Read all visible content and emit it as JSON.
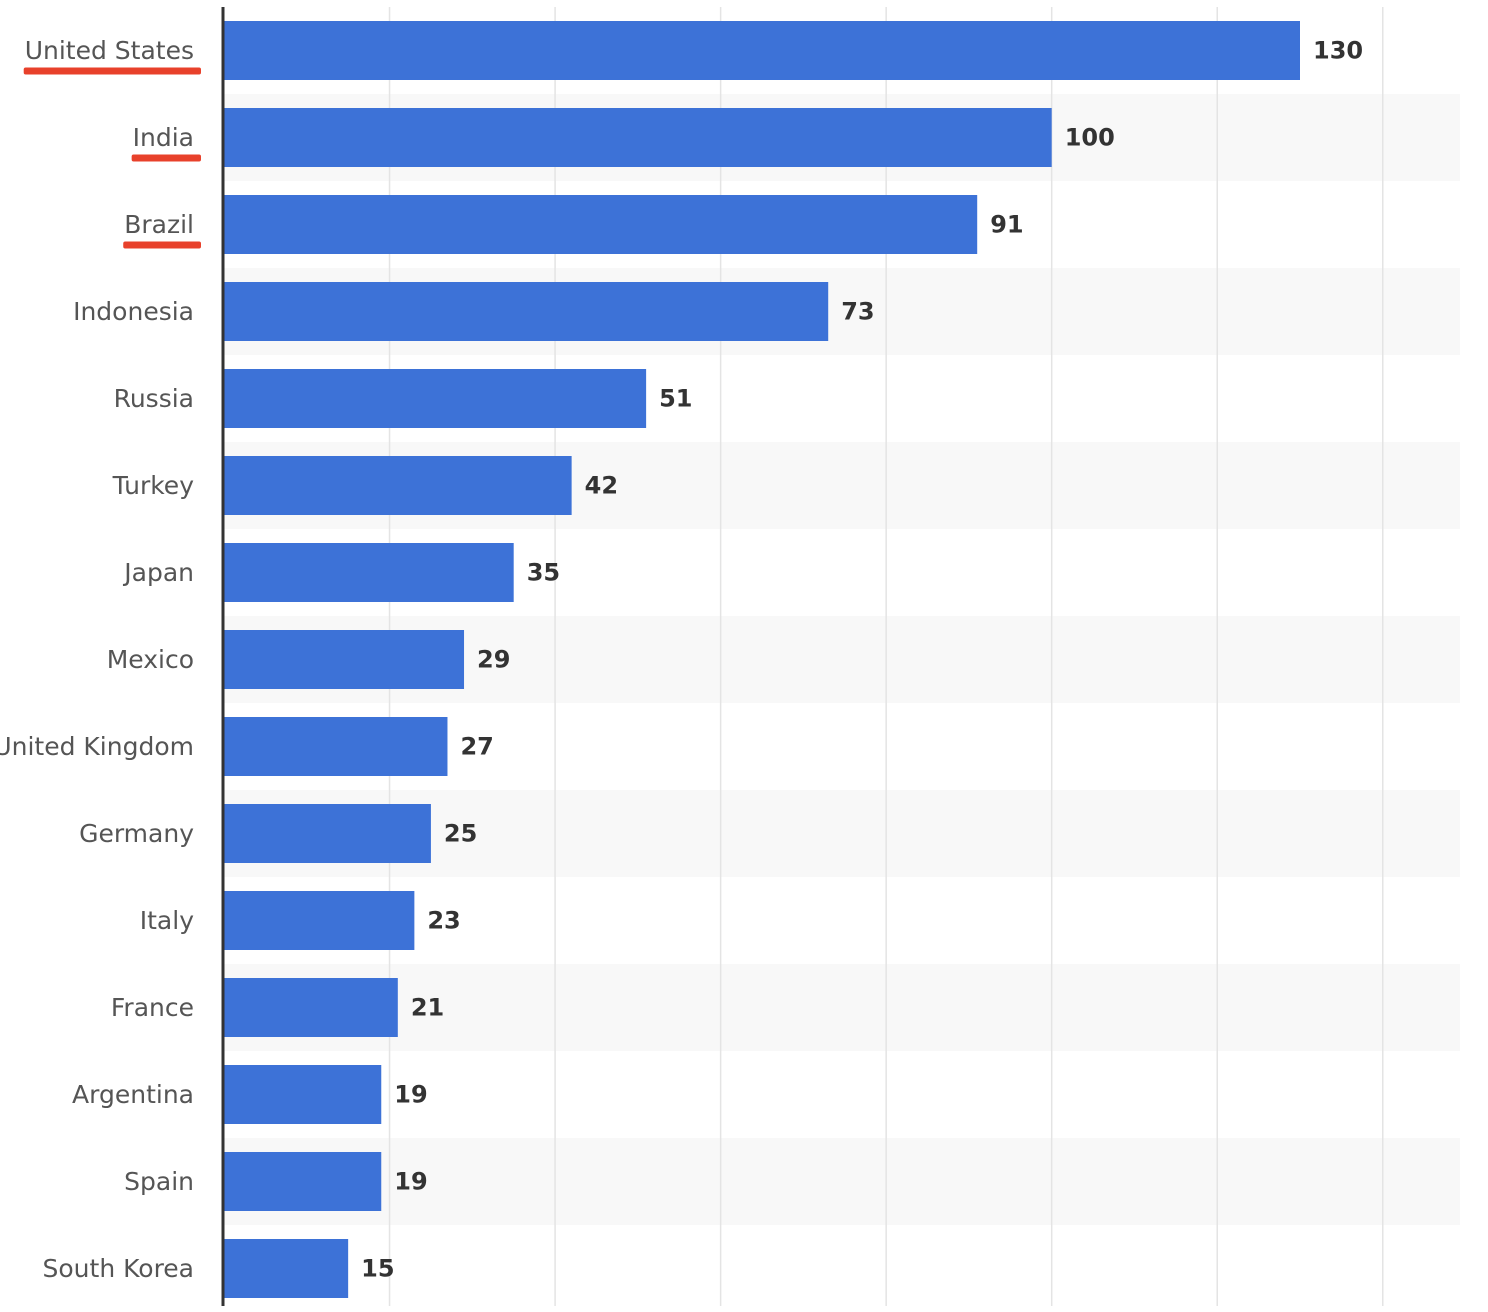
{
  "chart_data": {
    "type": "bar",
    "orientation": "horizontal",
    "categories": [
      "United States",
      "India",
      "Brazil",
      "Indonesia",
      "Russia",
      "Turkey",
      "Japan",
      "Mexico",
      "United Kingdom",
      "Germany",
      "Italy",
      "France",
      "Argentina",
      "Spain",
      "South Korea"
    ],
    "values": [
      130,
      100,
      91,
      73,
      51,
      42,
      35,
      29,
      27,
      25,
      23,
      21,
      19,
      19,
      15
    ],
    "highlighted_categories": [
      "United States",
      "India",
      "Brazil"
    ],
    "xlim": [
      0,
      150
    ],
    "grid": true,
    "data_labels": true,
    "colors": {
      "bar": "#3d72d7",
      "highlight_underline": "#e8412b",
      "band": "#f8f8f8",
      "gridline": "#e4e4e4",
      "axis": "#333333"
    }
  }
}
